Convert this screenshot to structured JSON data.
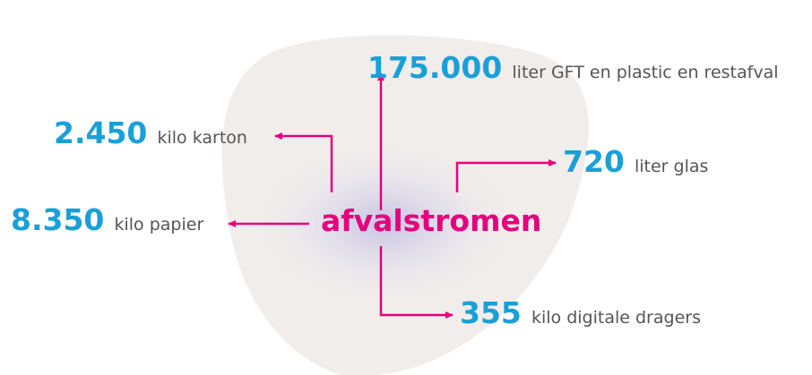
{
  "center": "afvalstromen",
  "items": [
    {
      "amount": "175.000",
      "unit": "liter GFT en plastic en restafval"
    },
    {
      "amount": "2.450",
      "unit": "kilo karton"
    },
    {
      "amount": "720",
      "unit": "liter glas"
    },
    {
      "amount": "8.350",
      "unit": "kilo papier"
    },
    {
      "amount": "355",
      "unit": "kilo digitale dragers"
    }
  ]
}
